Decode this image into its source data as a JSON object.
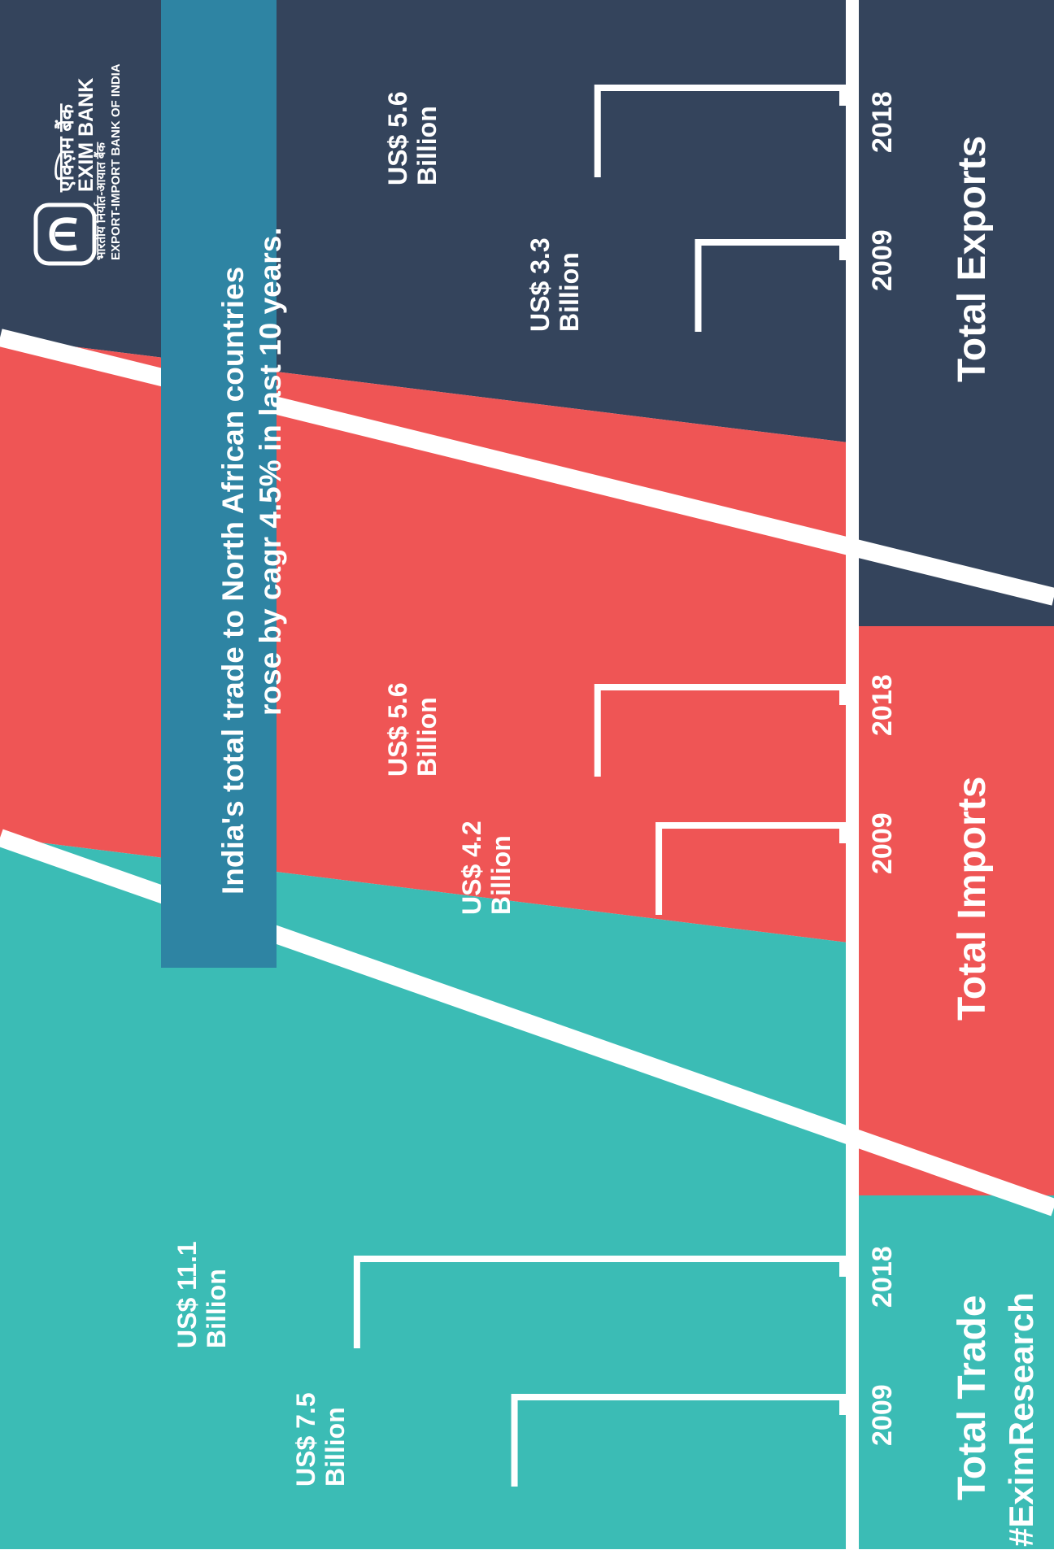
{
  "headline": {
    "line1": "India's total trade to North African countries",
    "line2": "rose by cagr 4.5% in last 10 years."
  },
  "logo": {
    "hindi_name": "एक्ज़िम बैंक",
    "english_name": "EXIM BANK",
    "hindi_tagline": "भारतीय निर्यात-आयात बैंक",
    "english_tagline": "EXPORT-IMPORT BANK OF INDIA"
  },
  "hashtag": "#EximResearch",
  "colors": {
    "exports": "#34445c",
    "imports": "#ef5555",
    "trade": "#3bbcb5",
    "banner": "#2e84a3",
    "divider": "#ffffff"
  },
  "chart_data": {
    "type": "bar",
    "unit": "US$ Billion",
    "categories": [
      "2009",
      "2018"
    ],
    "groups": [
      {
        "name": "Total Exports",
        "values": [
          3.3,
          5.6
        ],
        "labels": [
          "US$ 3.3",
          "US$ 5.6"
        ],
        "unit_label": "Billion"
      },
      {
        "name": "Total Imports",
        "values": [
          4.2,
          5.6
        ],
        "labels": [
          "US$ 4.2",
          "US$ 5.6"
        ],
        "unit_label": "Billion"
      },
      {
        "name": "Total Trade",
        "values": [
          7.5,
          11.1
        ],
        "labels": [
          "US$ 7.5",
          "US$ 11.1"
        ],
        "unit_label": "Billion"
      }
    ],
    "ylim": [
      0,
      14.5
    ]
  }
}
